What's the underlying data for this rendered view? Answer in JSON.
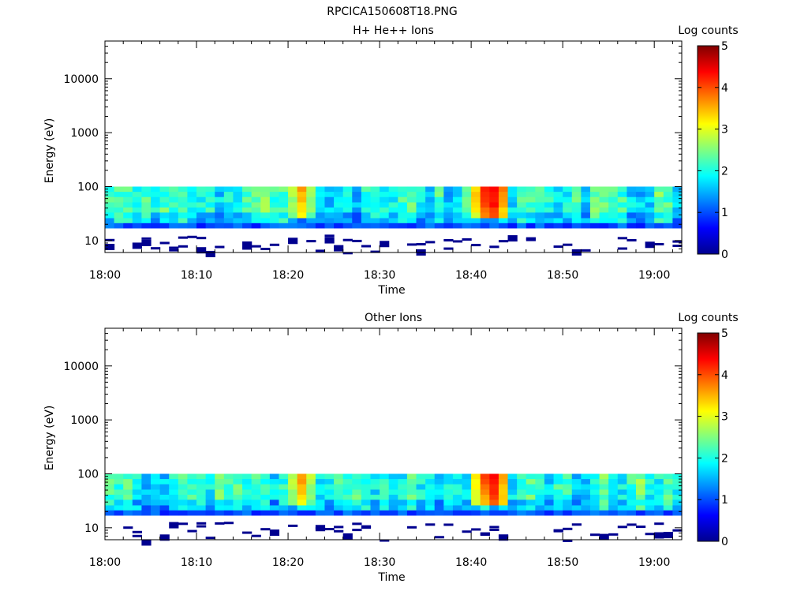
{
  "page_title": "RPCICA150608T18.PNG",
  "chart_data": [
    {
      "type": "heatmap",
      "title": "H+ He++ Ions",
      "xlabel": "Time",
      "ylabel": "Energy (eV)",
      "y_scale": "log",
      "ylim": [
        6,
        50000
      ],
      "xlim": [
        "18:00",
        "19:03"
      ],
      "x_ticks": [
        "18:00",
        "18:10",
        "18:20",
        "18:30",
        "18:40",
        "18:50",
        "19:00"
      ],
      "y_ticks": [
        "10",
        "100",
        "1000",
        "10000"
      ],
      "colorbar": {
        "label": "Log counts",
        "range": [
          0,
          5
        ],
        "ticks": [
          "0",
          "1",
          "2",
          "3",
          "4",
          "5"
        ]
      },
      "energy_band_top_eV": 100,
      "hot_spots": [
        {
          "time": "18:21",
          "log_counts": 3.6
        },
        {
          "time": "18:41",
          "log_counts": 4.2
        },
        {
          "time": "18:42",
          "log_counts": 4.5
        }
      ]
    },
    {
      "type": "heatmap",
      "title": "Other Ions",
      "xlabel": "Time",
      "ylabel": "Energy (eV)",
      "y_scale": "log",
      "ylim": [
        6,
        50000
      ],
      "xlim": [
        "18:00",
        "19:03"
      ],
      "x_ticks": [
        "18:00",
        "18:10",
        "18:20",
        "18:30",
        "18:40",
        "18:50",
        "19:00"
      ],
      "y_ticks": [
        "10",
        "100",
        "1000",
        "10000"
      ],
      "colorbar": {
        "label": "Log counts",
        "range": [
          0,
          5
        ],
        "ticks": [
          "0",
          "1",
          "2",
          "3",
          "4",
          "5"
        ]
      },
      "energy_band_top_eV": 100,
      "hot_spots": [
        {
          "time": "18:21",
          "log_counts": 3.6
        },
        {
          "time": "18:41",
          "log_counts": 4.0
        },
        {
          "time": "18:42",
          "log_counts": 4.4
        }
      ]
    }
  ]
}
